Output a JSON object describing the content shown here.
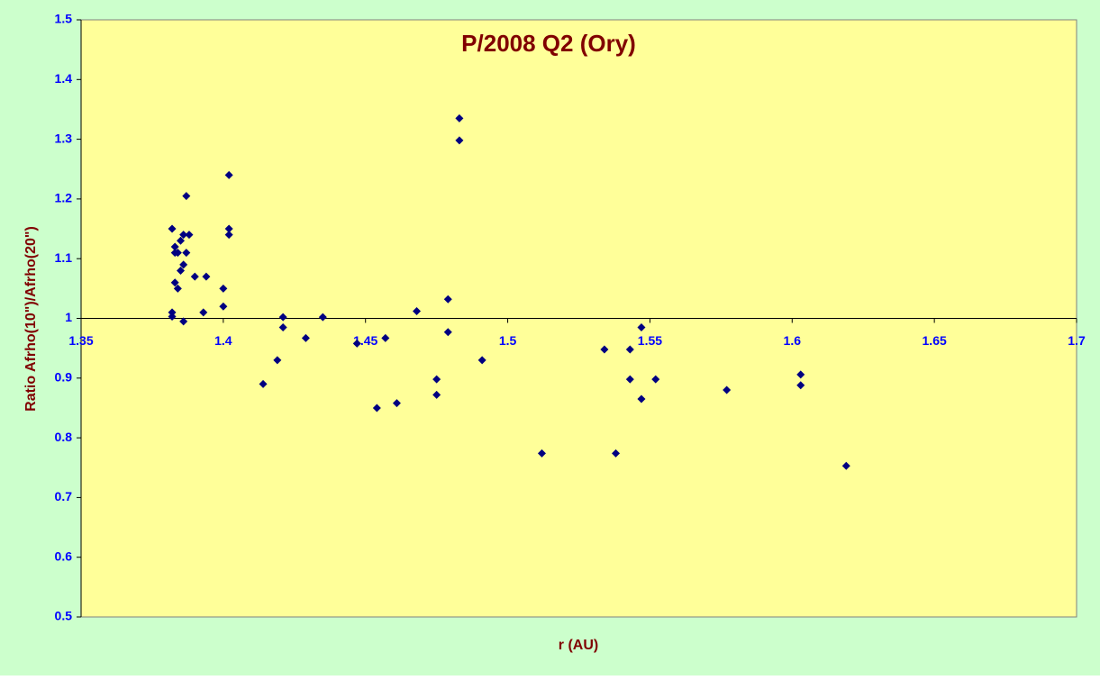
{
  "chart_data": {
    "type": "scatter",
    "title": "P/2008 Q2 (Ory)",
    "x_label": "r (AU)",
    "y_label": "Ratio Afrho(10\")/Afrho(20\")",
    "xlim": [
      1.35,
      1.7
    ],
    "xticks": [
      1.35,
      1.4,
      1.45,
      1.5,
      1.55,
      1.6,
      1.65,
      1.7
    ],
    "ylim": [
      0.5,
      1.5
    ],
    "yticks": [
      0.5,
      0.6,
      0.7,
      0.8,
      0.9,
      1,
      1.1,
      1.2,
      1.3,
      1.4,
      1.5
    ],
    "x_axis_at": 1,
    "series": [
      {
        "color": "#000080",
        "x": [
          1.382,
          1.383,
          1.383,
          1.384,
          1.385,
          1.386,
          1.387,
          1.388,
          1.387,
          1.386,
          1.385,
          1.384,
          1.383,
          1.382,
          1.382,
          1.386,
          1.39,
          1.393,
          1.394,
          1.4,
          1.4,
          1.402,
          1.402,
          1.402,
          1.414,
          1.419,
          1.421,
          1.421,
          1.429,
          1.435,
          1.447,
          1.454,
          1.457,
          1.461,
          1.468,
          1.475,
          1.475,
          1.479,
          1.479,
          1.483,
          1.483,
          1.491,
          1.512,
          1.534,
          1.538,
          1.543,
          1.543,
          1.547,
          1.547,
          1.552,
          1.577,
          1.603,
          1.603,
          1.619
        ],
        "values": [
          1.15,
          1.12,
          1.11,
          1.11,
          1.13,
          1.14,
          1.205,
          1.14,
          1.11,
          1.09,
          1.08,
          1.05,
          1.06,
          1.01,
          1.003,
          0.995,
          1.07,
          1.01,
          1.07,
          1.05,
          1.02,
          1.24,
          1.15,
          1.14,
          0.89,
          0.93,
          1.002,
          0.985,
          0.967,
          1.002,
          0.958,
          0.85,
          0.967,
          0.858,
          1.012,
          0.898,
          0.872,
          1.032,
          0.977,
          1.335,
          1.298,
          0.93,
          0.774,
          0.948,
          0.774,
          0.948,
          0.898,
          0.985,
          0.865,
          0.898,
          0.88,
          0.906,
          0.888,
          0.753
        ]
      }
    ]
  }
}
